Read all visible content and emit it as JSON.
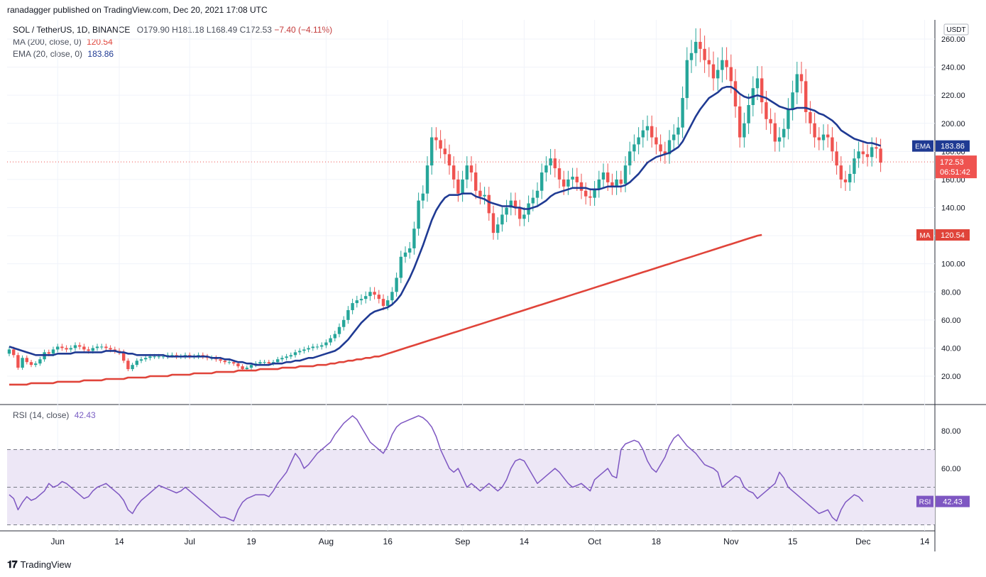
{
  "header": {
    "publisher": "ranadagger published on TradingView.com, Dec 20, 2021 17:08 UTC"
  },
  "legend": {
    "symbol": "SOL / TetherUS, 1D, BINANCE",
    "open": "O179.90",
    "high": "H181.18",
    "low": "L168.49",
    "close": "C172.53",
    "change": "−7.40 (−4.11%)",
    "ma_label": "MA (200, close, 0)",
    "ma_value": "120.54",
    "ema_label": "EMA (20, close, 0)",
    "ema_value": "183.86",
    "rsi_label": "RSI (14, close)",
    "rsi_value": "42.43"
  },
  "price_badges": {
    "currency": "USDT",
    "ema_tag": "EMA",
    "ema_value": "183.86",
    "last_price": "172.53",
    "countdown": "06:51:42",
    "ma_tag": "MA",
    "ma_value": "120.54",
    "rsi_tag": "RSI",
    "rsi_value": "42.43"
  },
  "footer": {
    "brand": "TradingView"
  },
  "colors": {
    "up": "#26a69a",
    "down": "#ef5350",
    "ema": "#1f3a93",
    "ma": "#e0443a",
    "rsi": "#7e57c2",
    "rsi_band": "#ede7f6"
  },
  "chart_data": [
    {
      "type": "candlestick",
      "title": "SOL / TetherUS, 1D, BINANCE",
      "x_ticks": [
        "Jun",
        "14",
        "Jul",
        "19",
        "Aug",
        "16",
        "Sep",
        "14",
        "Oct",
        "18",
        "Nov",
        "15",
        "Dec",
        "14"
      ],
      "y_ticks": [
        "20.00",
        "40.00",
        "60.00",
        "80.00",
        "100.00",
        "120.00",
        "140.00",
        "160.00",
        "180.00",
        "200.00",
        "220.00",
        "240.00",
        "260.00"
      ],
      "ylim": [
        10,
        266
      ],
      "days": 211,
      "close": [
        39,
        35,
        26,
        33,
        30,
        28,
        29,
        32,
        37,
        36,
        39,
        41,
        40,
        39,
        40,
        42,
        41,
        39,
        38,
        40,
        41,
        41,
        40,
        39,
        38,
        37,
        31,
        25,
        28,
        31,
        32,
        33,
        34,
        34,
        34,
        34,
        35,
        35,
        34,
        34,
        35,
        34,
        34,
        35,
        34,
        33,
        33,
        32,
        31,
        30,
        30,
        29,
        27,
        25,
        26,
        28,
        29,
        30,
        30,
        29,
        30,
        32,
        33,
        34,
        35,
        37,
        38,
        39,
        40,
        41,
        41,
        42,
        44,
        47,
        50,
        55,
        60,
        67,
        72,
        74,
        75,
        77,
        80,
        78,
        75,
        70,
        74,
        80,
        90,
        105,
        108,
        111,
        125,
        145,
        150,
        170,
        190,
        188,
        182,
        178,
        170,
        160,
        150,
        160,
        170,
        165,
        152,
        148,
        149,
        136,
        122,
        128,
        135,
        140,
        145,
        140,
        132,
        135,
        143,
        147,
        152,
        165,
        170,
        175,
        168,
        160,
        155,
        160,
        162,
        158,
        152,
        148,
        147,
        153,
        160,
        165,
        158,
        155,
        160,
        157,
        170,
        180,
        185,
        190,
        195,
        198,
        190,
        185,
        180,
        178,
        188,
        192,
        197,
        218,
        245,
        250,
        258,
        253,
        245,
        242,
        232,
        238,
        245,
        240,
        230,
        212,
        190,
        200,
        213,
        225,
        232,
        215,
        203,
        200,
        187,
        190,
        196,
        210,
        222,
        235,
        230,
        208,
        200,
        190,
        188,
        192,
        190,
        180,
        170,
        160,
        158,
        164,
        175,
        180,
        178,
        176,
        183,
        182,
        172
      ],
      "ema20": [
        41,
        40,
        39,
        38,
        37,
        36,
        35,
        35,
        35,
        35,
        35,
        36,
        36,
        36,
        36,
        37,
        37,
        37,
        37,
        37,
        37,
        37,
        38,
        38,
        38,
        37,
        37,
        36,
        36,
        35,
        35,
        35,
        35,
        35,
        35,
        35,
        34,
        34,
        34,
        34,
        34,
        34,
        34,
        34,
        34,
        34,
        33,
        33,
        33,
        32,
        32,
        31,
        30,
        30,
        29,
        29,
        28,
        28,
        28,
        28,
        29,
        29,
        29,
        30,
        30,
        31,
        31,
        32,
        33,
        33,
        34,
        35,
        36,
        37,
        38,
        40,
        43,
        46,
        50,
        54,
        58,
        61,
        64,
        66,
        67,
        68,
        69,
        71,
        74,
        78,
        84,
        90,
        97,
        105,
        113,
        122,
        131,
        138,
        143,
        147,
        149,
        149,
        149,
        150,
        150,
        150,
        148,
        147,
        146,
        144,
        143,
        142,
        141,
        141,
        141,
        140,
        140,
        139,
        139,
        140,
        141,
        143,
        145,
        148,
        150,
        151,
        152,
        153,
        154,
        154,
        154,
        154,
        153,
        153,
        153,
        154,
        155,
        155,
        155,
        155,
        156,
        158,
        161,
        164,
        168,
        172,
        174,
        176,
        177,
        178,
        179,
        181,
        183,
        187,
        193,
        199,
        205,
        210,
        214,
        218,
        220,
        222,
        225,
        226,
        226,
        224,
        221,
        219,
        218,
        219,
        220,
        219,
        218,
        216,
        214,
        212,
        211,
        210,
        210,
        211,
        211,
        211,
        210,
        209,
        207,
        206,
        204,
        202,
        199,
        195,
        193,
        191,
        189,
        188,
        187,
        186,
        186,
        185,
        184
      ],
      "ma200": [
        14,
        14,
        14,
        14,
        14,
        15,
        15,
        15,
        15,
        15,
        15,
        16,
        16,
        16,
        16,
        16,
        16,
        17,
        17,
        17,
        17,
        17,
        18,
        18,
        18,
        18,
        18,
        19,
        19,
        19,
        19,
        19,
        20,
        20,
        20,
        20,
        20,
        21,
        21,
        21,
        21,
        21,
        22,
        22,
        22,
        22,
        22,
        23,
        23,
        23,
        23,
        23,
        24,
        24,
        24,
        24,
        24,
        25,
        25,
        25,
        25,
        25,
        26,
        26,
        26,
        26,
        27,
        27,
        27,
        27,
        28,
        28,
        28,
        29,
        29,
        30,
        30,
        31,
        31,
        32,
        32,
        33,
        33,
        34,
        34,
        35,
        36,
        37,
        38,
        39,
        40,
        41,
        42,
        43,
        44,
        45,
        46,
        47,
        48,
        49,
        50,
        51,
        52,
        53,
        54,
        55,
        56,
        57,
        58,
        59,
        60,
        61,
        62,
        63,
        64,
        65,
        66,
        67,
        68,
        69,
        70,
        71,
        72,
        73,
        74,
        75,
        76,
        77,
        78,
        79,
        80,
        81,
        82,
        83,
        84,
        85,
        86,
        87,
        88,
        89,
        90,
        91,
        92,
        93,
        94,
        95,
        96,
        97,
        98,
        99,
        100,
        101,
        102,
        103,
        104,
        105,
        106,
        107,
        108,
        109,
        110,
        111,
        112,
        113,
        114,
        115,
        116,
        117,
        118,
        119,
        120,
        120.54
      ]
    },
    {
      "type": "line",
      "title": "RSI (14, close)",
      "y_ticks": [
        "60.00",
        "80.00"
      ],
      "ylim": [
        35,
        95
      ],
      "bands": [
        30,
        50,
        70
      ],
      "values": [
        46,
        44,
        38,
        42,
        45,
        43,
        44,
        46,
        48,
        52,
        50,
        51,
        53,
        52,
        50,
        48,
        46,
        44,
        45,
        48,
        50,
        51,
        52,
        50,
        48,
        46,
        43,
        38,
        36,
        40,
        43,
        45,
        47,
        49,
        51,
        50,
        49,
        48,
        47,
        48,
        50,
        48,
        46,
        44,
        42,
        40,
        38,
        36,
        34,
        34,
        33,
        32,
        38,
        42,
        44,
        45,
        46,
        46,
        46,
        45,
        48,
        52,
        55,
        58,
        63,
        68,
        65,
        60,
        62,
        65,
        68,
        70,
        72,
        74,
        78,
        81,
        84,
        86,
        88,
        86,
        82,
        78,
        74,
        72,
        70,
        68,
        72,
        78,
        82,
        84,
        85,
        86,
        87,
        88,
        87,
        85,
        82,
        77,
        70,
        65,
        60,
        58,
        60,
        55,
        50,
        52,
        50,
        48,
        50,
        52,
        50,
        48,
        50,
        54,
        60,
        64,
        65,
        64,
        60,
        56,
        52,
        54,
        56,
        58,
        60,
        58,
        55,
        52,
        50,
        51,
        52,
        50,
        48,
        54,
        56,
        58,
        60,
        56,
        55,
        70,
        73,
        74,
        75,
        74,
        70,
        64,
        60,
        58,
        62,
        66,
        72,
        76,
        78,
        75,
        72,
        70,
        68,
        65,
        62,
        61,
        60,
        58,
        50,
        52,
        54,
        56,
        55,
        50,
        48,
        47,
        44,
        46,
        48,
        50,
        52,
        58,
        55,
        50,
        48,
        46,
        44,
        42,
        40,
        38,
        36,
        37,
        38,
        34,
        32,
        38,
        42,
        44,
        46,
        45,
        42.43
      ]
    }
  ]
}
